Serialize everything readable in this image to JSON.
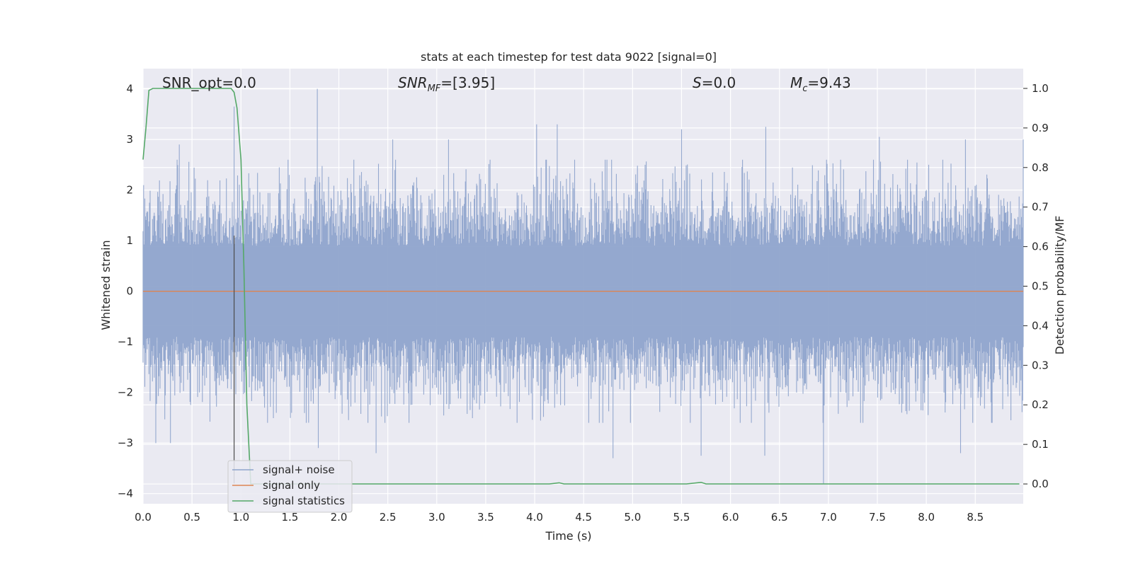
{
  "chart_data": {
    "type": "line",
    "title": "stats at each timestep for test data 9022 [signal=0]",
    "xlabel": "Time (s)",
    "ylabel_left": "Whitened strain",
    "ylabel_right": "Detection probability/MF",
    "xlim": [
      0.0,
      8.99
    ],
    "ylim_left": [
      -4.2,
      4.4
    ],
    "ylim_right": [
      -0.05,
      1.05
    ],
    "xticks": [
      0.0,
      0.5,
      1.0,
      1.5,
      2.0,
      2.5,
      3.0,
      3.5,
      4.0,
      4.5,
      5.0,
      5.5,
      6.0,
      6.5,
      7.0,
      7.5,
      8.0,
      8.5
    ],
    "xtick_labels": [
      "0.0",
      "0.5",
      "1.0",
      "1.5",
      "2.0",
      "2.5",
      "3.0",
      "3.5",
      "4.0",
      "4.5",
      "5.0",
      "5.5",
      "6.0",
      "6.5",
      "7.0",
      "7.5",
      "8.0",
      "8.5"
    ],
    "yticks_left": [
      -4,
      -3,
      -2,
      -1,
      0,
      1,
      2,
      3,
      4
    ],
    "ytick_labels_left": [
      "−4",
      "−3",
      "−2",
      "−1",
      "0",
      "1",
      "2",
      "3",
      "4"
    ],
    "yticks_right": [
      0.0,
      0.1,
      0.2,
      0.3,
      0.4,
      0.5,
      0.6,
      0.7,
      0.8,
      0.9,
      1.0
    ],
    "ytick_labels_right": [
      "0.0",
      "0.1",
      "0.2",
      "0.3",
      "0.4",
      "0.5",
      "0.6",
      "0.7",
      "0.8",
      "0.9",
      "1.0"
    ],
    "grid": true,
    "legend_position": "lower-left",
    "annotations": {
      "snr_opt": "SNR_opt=0.0",
      "snr_mf_main": "SNR",
      "snr_mf_sub": "MF",
      "snr_mf_value": "=[3.95]",
      "s_main": "S",
      "s_value": "=0.0",
      "mc_main": "M",
      "mc_sub": "c",
      "mc_value": "=9.43"
    },
    "series": [
      {
        "name": "signal+ noise",
        "axis": "left",
        "color": "#8fa4cc",
        "description": "noise-dominated strain, amplitude typically within about ±2.6, peaks near 4.0 at t≈1.78 and -3.8 at t≈6.95",
        "envelope_upper_typical": 2.6,
        "envelope_lower_typical": -2.6,
        "peaks": [
          {
            "x": 0.37,
            "y": 2.9
          },
          {
            "x": 0.93,
            "y": 3.65
          },
          {
            "x": 1.78,
            "y": 4.0
          },
          {
            "x": 2.55,
            "y": 3.0
          },
          {
            "x": 3.12,
            "y": 3.0
          },
          {
            "x": 4.02,
            "y": 3.3
          },
          {
            "x": 4.23,
            "y": 3.3
          },
          {
            "x": 5.5,
            "y": 3.2
          },
          {
            "x": 6.36,
            "y": 3.25
          },
          {
            "x": 7.52,
            "y": 3.05
          },
          {
            "x": 8.4,
            "y": 3.0
          },
          {
            "x": 8.99,
            "y": 3.0
          },
          {
            "x": 0.13,
            "y": -3.0
          },
          {
            "x": 0.28,
            "y": -3.0
          },
          {
            "x": 1.79,
            "y": -3.1
          },
          {
            "x": 2.38,
            "y": -3.2
          },
          {
            "x": 4.8,
            "y": -3.3
          },
          {
            "x": 5.7,
            "y": -3.25
          },
          {
            "x": 6.35,
            "y": -3.25
          },
          {
            "x": 6.95,
            "y": -3.8
          },
          {
            "x": 8.35,
            "y": -3.2
          }
        ]
      },
      {
        "name": "signal only",
        "axis": "left",
        "color": "#dd8452",
        "x": [
          0.0,
          8.99
        ],
        "y": [
          0.0,
          0.0
        ]
      },
      {
        "name": "signal statistics",
        "axis": "right",
        "color": "#55a868",
        "x": [
          0.0,
          0.03,
          0.06,
          0.1,
          0.15,
          0.2,
          0.9,
          0.93,
          0.96,
          1.0,
          1.03,
          1.06,
          1.1,
          1.5,
          2.0,
          4.15,
          4.25,
          4.3,
          4.5,
          5.55,
          5.7,
          5.75,
          6.0,
          8.95
        ],
        "y": [
          0.82,
          0.9,
          0.995,
          1.0,
          1.0,
          1.0,
          1.0,
          0.99,
          0.95,
          0.82,
          0.55,
          0.2,
          0.0,
          0.0,
          0.0,
          0.0,
          0.003,
          0.0,
          0.0,
          0.0,
          0.004,
          0.0,
          0.0,
          0.0
        ]
      }
    ],
    "vertical_marker": {
      "x": 0.93,
      "y_from": -3.8,
      "y_to": 1.1,
      "color": "#4c4c4c"
    }
  },
  "colors": {
    "plot_background": "#eaeaf2",
    "grid": "#ffffff",
    "text": "#262626"
  }
}
